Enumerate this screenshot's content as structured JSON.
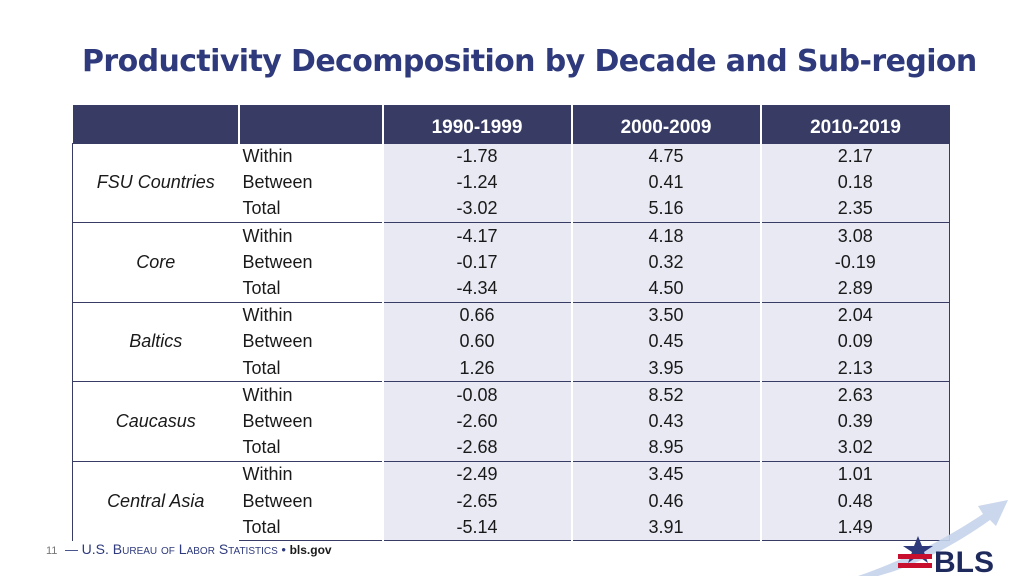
{
  "title": "Productivity Decomposition by Decade and Sub-region",
  "table": {
    "columns": [
      "1990-1999",
      "2000-2009",
      "2010-2019"
    ],
    "groups": [
      {
        "region": "FSU Countries",
        "rows": [
          {
            "label": "Within",
            "values": [
              "-1.78",
              "4.75",
              "2.17"
            ]
          },
          {
            "label": "Between",
            "values": [
              "-1.24",
              "0.41",
              "0.18"
            ]
          },
          {
            "label": "Total",
            "values": [
              "-3.02",
              "5.16",
              "2.35"
            ]
          }
        ]
      },
      {
        "region": "Core",
        "rows": [
          {
            "label": "Within",
            "values": [
              "-4.17",
              "4.18",
              "3.08"
            ]
          },
          {
            "label": "Between",
            "values": [
              "-0.17",
              "0.32",
              "-0.19"
            ]
          },
          {
            "label": "Total",
            "values": [
              "-4.34",
              "4.50",
              "2.89"
            ]
          }
        ]
      },
      {
        "region": "Baltics",
        "rows": [
          {
            "label": "Within",
            "values": [
              "0.66",
              "3.50",
              "2.04"
            ]
          },
          {
            "label": "Between",
            "values": [
              "0.60",
              "0.45",
              "0.09"
            ]
          },
          {
            "label": "Total",
            "values": [
              "1.26",
              "3.95",
              "2.13"
            ]
          }
        ]
      },
      {
        "region": "Caucasus",
        "rows": [
          {
            "label": "Within",
            "values": [
              "-0.08",
              "8.52",
              "2.63"
            ]
          },
          {
            "label": "Between",
            "values": [
              "-2.60",
              "0.43",
              "0.39"
            ]
          },
          {
            "label": "Total",
            "values": [
              "-2.68",
              "8.95",
              "3.02"
            ]
          }
        ]
      },
      {
        "region": "Central Asia",
        "rows": [
          {
            "label": "Within",
            "values": [
              "-2.49",
              "3.45",
              "1.01"
            ]
          },
          {
            "label": "Between",
            "values": [
              "-2.65",
              "0.46",
              "0.48"
            ]
          },
          {
            "label": "Total",
            "values": [
              "-5.14",
              "3.91",
              "1.49"
            ]
          }
        ]
      }
    ]
  },
  "footer": {
    "page": "11",
    "dash": "—",
    "org": "U.S. Bureau of Labor Statistics",
    "sep": "•",
    "site": "bls.gov"
  },
  "logo": {
    "text": "BLS"
  },
  "colors": {
    "title": "#2e3a7c",
    "header_bg": "#383c64",
    "value_bg": "#e8e9f3",
    "logo_red": "#c8102e"
  }
}
